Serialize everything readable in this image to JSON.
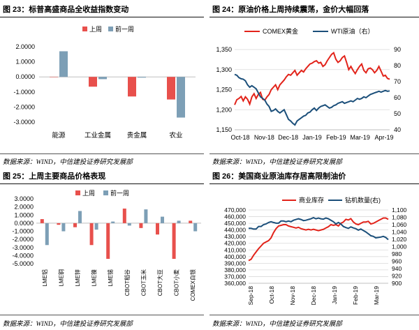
{
  "colors": {
    "red": "#e8504c",
    "blue": "#7d9fb6",
    "line_red": "#e2231a",
    "line_navy": "#1b4f7a",
    "dark": "#2f5f85",
    "grid": "#d9d9d9"
  },
  "panels": {
    "p23": {
      "title": "图 23：标普高盛商品全收益指数变动",
      "source": "数据来源：WIND，中信建投证券研究发展部"
    },
    "p24": {
      "title": "图 24：原油价格上周持续震荡，金价大幅回落",
      "source": "数据来源：WIND，中信建投证券研究发展部"
    },
    "p25": {
      "title": "图 25：上周主要商品价格表现",
      "source": "数据来源：WIND，中信建投证券研究发展部"
    },
    "p26": {
      "title": "图 26：美国商业原油库存居高限制油价",
      "source": "数据来源：WIND，中信建投证券研究发展部"
    }
  },
  "chart_data": [
    {
      "id": "p23",
      "type": "bar",
      "categories": [
        "能源",
        "工业金属",
        "贵金属",
        "农业"
      ],
      "series": [
        {
          "name": "上周",
          "values": [
            0.0,
            -0.65,
            -1.3,
            -1.5
          ]
        },
        {
          "name": "前一周",
          "values": [
            1.7,
            -0.15,
            -0.05,
            -2.7
          ]
        }
      ],
      "ylim": [
        -3,
        2
      ],
      "yticks": [
        "2.0000",
        "1.0000",
        "0.0000",
        "-1.0000",
        "-2.0000",
        "-3.0000"
      ],
      "legend_position": "top-left"
    },
    {
      "id": "p24",
      "type": "line",
      "x_ticks": [
        "Oct-18",
        "Nov-18",
        "Dec-18",
        "Jan-19",
        "Feb-19",
        "Mar-19",
        "Apr-19"
      ],
      "series": [
        {
          "name": "COMEX黄金",
          "axis": "left",
          "values": [
            1212,
            1225,
            1228,
            1233,
            1222,
            1232,
            1226,
            1214,
            1232,
            1240,
            1228,
            1238,
            1243,
            1226,
            1224,
            1232,
            1238,
            1250,
            1256,
            1262,
            1250,
            1262,
            1268,
            1274,
            1282,
            1288,
            1286,
            1292,
            1298,
            1286,
            1292,
            1298,
            1294,
            1302,
            1308,
            1314,
            1316,
            1320,
            1322,
            1316,
            1318,
            1308,
            1312,
            1322,
            1330,
            1338,
            1342,
            1326,
            1318,
            1322,
            1330,
            1334,
            1318,
            1300,
            1308,
            1298,
            1290,
            1300,
            1308,
            1314,
            1298,
            1292,
            1302,
            1304,
            1300,
            1292,
            1298,
            1308,
            1296,
            1284,
            1286,
            1278,
            1276
          ]
        },
        {
          "name": "WTI原油（右）",
          "axis": "right",
          "values": [
            74.5,
            74.0,
            72.5,
            71.8,
            71.5,
            70.5,
            68.0,
            66.5,
            67.5,
            66.5,
            65.5,
            63.0,
            60.5,
            59.5,
            58.5,
            56.0,
            54.5,
            51.5,
            52.0,
            53.0,
            51.5,
            50.5,
            51.5,
            52.5,
            49.5,
            46.5,
            45.5,
            44.0,
            43.0,
            45.5,
            46.5,
            47.5,
            48.5,
            49.0,
            50.5,
            51.0,
            52.5,
            53.5,
            52.0,
            53.5,
            54.5,
            55.0,
            55.5,
            54.5,
            53.5,
            54.0,
            55.0,
            55.5,
            56.5,
            57.0,
            57.5,
            56.5,
            57.0,
            57.5,
            58.0,
            57.5,
            58.5,
            59.5,
            59.0,
            59.5,
            60.5,
            60.0,
            61.0,
            62.0,
            62.5,
            63.0,
            63.5,
            64.0,
            63.5,
            64.0,
            64.5,
            64.0,
            64.2
          ]
        }
      ],
      "ylim_left": [
        1150,
        1350
      ],
      "ylim_right": [
        40,
        90
      ],
      "yticks_left": [
        "1,350",
        "1,300",
        "1,250",
        "1,200",
        "1,150"
      ],
      "yticks_right": [
        "90",
        "80",
        "70",
        "60",
        "50",
        "40"
      ],
      "legend_position": "top"
    },
    {
      "id": "p25",
      "type": "bar",
      "categories": [
        "LME铝",
        "LME铜",
        "LME锌",
        "LME镍",
        "LME锡",
        "CBOT稻谷",
        "CBOT玉米",
        "CBOT大豆",
        "CBOT小麦",
        "COMEX白银"
      ],
      "series": [
        {
          "name": "上周",
          "values": [
            0.5,
            -0.2,
            -0.5,
            -2.7,
            -4.4,
            1.8,
            -0.6,
            -1.4,
            -4.4,
            0.3
          ]
        },
        {
          "name": "前一周",
          "values": [
            -2.7,
            -1.0,
            1.5,
            -0.8,
            0.2,
            -0.3,
            1.7,
            0.8,
            0.3,
            -1.0
          ]
        }
      ],
      "ylim": [
        -5,
        3
      ],
      "yticks": [
        "3.0000",
        "2.0000",
        "1.0000",
        "0.0000",
        "-1.0000",
        "-2.0000",
        "-3.0000",
        "-4.0000",
        "-5.0000"
      ],
      "legend_position": "top"
    },
    {
      "id": "p26",
      "type": "line",
      "x_ticks": [
        "Sep-18",
        "Oct-18",
        "Nov-18",
        "Dec-18",
        "Jan-19",
        "Feb-19",
        "Mar-19"
      ],
      "series": [
        {
          "name": "商业库存",
          "axis": "left",
          "values": [
            394,
            396,
            402,
            407,
            412,
            416,
            420,
            422,
            424,
            428,
            436,
            442,
            446,
            447,
            448,
            448,
            446,
            445,
            444,
            443,
            444,
            442,
            441,
            440,
            441,
            440,
            441,
            440,
            439,
            440,
            441,
            443,
            445,
            448,
            447,
            448,
            446,
            450,
            452,
            456,
            455,
            457,
            452,
            449,
            448,
            450,
            452,
            452,
            453,
            449,
            450,
            452,
            454,
            456,
            458,
            458,
            456
          ]
        },
        {
          "name": "钻机数量(右)",
          "axis": "right",
          "values": [
            1050,
            1050,
            1048,
            1048,
            1055,
            1055,
            1060,
            1062,
            1066,
            1068,
            1066,
            1064,
            1064,
            1070,
            1070,
            1068,
            1070,
            1068,
            1072,
            1074,
            1076,
            1074,
            1071,
            1072,
            1074,
            1076,
            1079,
            1076,
            1078,
            1076,
            1075,
            1078,
            1076,
            1072,
            1068,
            1062,
            1066,
            1062,
            1055,
            1052,
            1050,
            1054,
            1051,
            1049,
            1045,
            1048,
            1044,
            1040,
            1035,
            1030,
            1028,
            1024,
            1025,
            1026,
            1028,
            1025,
            1019
          ]
        }
      ],
      "ylim_left": [
        360000,
        470000
      ],
      "ylim_right": [
        900,
        1100
      ],
      "yticks_left": [
        "470,000",
        "460,000",
        "450,000",
        "440,000",
        "430,000",
        "420,000",
        "410,000",
        "400,000",
        "390,000",
        "380,000",
        "370,000",
        "360,000"
      ],
      "yticks_right": [
        "1,100",
        "1,080",
        "1,060",
        "1,040",
        "1,020",
        "1,000",
        "980",
        "960",
        "940",
        "920",
        "900"
      ],
      "left_value_unit": "thousand barrels (series stored in thousands)",
      "legend_position": "top"
    }
  ]
}
